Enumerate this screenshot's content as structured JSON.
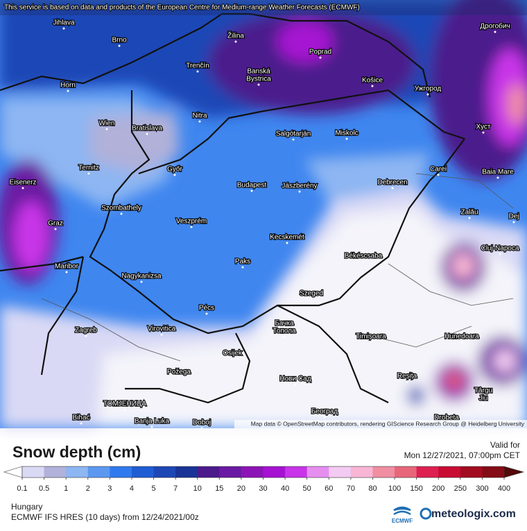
{
  "header": {
    "notice": "This service is based on data and products of the European Centre for Medium-range Weather Forecasts (ECMWF)"
  },
  "map": {
    "attribution": "Map data © OpenStreetMap contributors, rendering GIScience Research Group @ Heidelberg University",
    "places": [
      "Jihlava",
      "Brno",
      "Žilina",
      "Poprad",
      "Дрогобич",
      "Banská",
      "Bystrica",
      "Trenčín",
      "Košice",
      "Ужгород",
      "Horn",
      "Wien",
      "Bratislava",
      "Nitra",
      "Salgótarján",
      "Miskolc",
      "Хуст",
      "Ternitz",
      "Győr",
      "Budapest",
      "Jászberény",
      "Debrecen",
      "Carei",
      "Baia Mare",
      "Eisenerz",
      "Szombathely",
      "Zalău",
      "Graz",
      "Veszprém",
      "Kecskemét",
      "Dej",
      "Cluj-Napoca",
      "Maribor",
      "Nagykanizsa",
      "Paks",
      "Békéscsaba",
      "Szeged",
      "Pécs",
      "Zagreb",
      "Virovitica",
      "Бачка",
      "Топола",
      "Timișoara",
      "Hunedoara",
      "Osijek",
      "Požega",
      "Нови Сад",
      "Reșița",
      "Târgu",
      "Jiu",
      "ТОМЈЕНИЦА",
      "Bihać",
      "Banja Luka",
      "Doboj",
      "Београд",
      "Drobeta"
    ]
  },
  "panel": {
    "title": "Snow depth (cm)",
    "valid_label": "Valid for",
    "valid_time": "Mon 12/27/2021, 07:00pm CET",
    "region": "Hungary",
    "model": "ECMWF IFS HRES (10 days) from 12/24/2021/00z",
    "ecmwf_logo": "ECMWF",
    "brand": "meteologix.com"
  },
  "legend": {
    "ticks": [
      0.1,
      0.5,
      1,
      2,
      3,
      4,
      5,
      7,
      10,
      15,
      20,
      30,
      40,
      50,
      60,
      70,
      80,
      100,
      150,
      200,
      250,
      300,
      400
    ],
    "colors": [
      "#d9d9f5",
      "#b1b1d9",
      "#8db6f2",
      "#5c98f0",
      "#3079ee",
      "#1f5dd4",
      "#1e47b6",
      "#1a3396",
      "#4b1a8c",
      "#6a1aa2",
      "#8c14b6",
      "#a612d2",
      "#c834e8",
      "#e68ef0",
      "#f2caf2",
      "#f8b6d4",
      "#f08ea2",
      "#e8667a",
      "#dc2050",
      "#c80c34",
      "#a20c20",
      "#840c16"
    ],
    "under_color": "#ffffff",
    "over_color": "#520a0a"
  }
}
